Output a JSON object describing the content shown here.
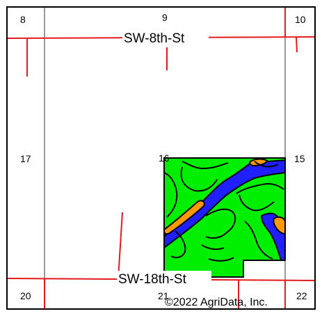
{
  "map": {
    "colors": {
      "frame": "#000000",
      "section_line": "#999999",
      "road": "#e31a1c",
      "soil_green": "#00ee00",
      "soil_blue": "#1f1fff",
      "soil_orange": "#ff9900",
      "soil_outline": "#000000",
      "background": "#ffffff"
    },
    "section_numbers": {
      "s8": "8",
      "s9": "9",
      "s10": "10",
      "s17": "17",
      "s16": "16",
      "s15": "15",
      "s20": "20",
      "s21": "21",
      "s22": "22"
    },
    "roads": {
      "north": "SW-8th-St",
      "south": "SW-18th-St"
    },
    "copyright": "©2022 AgriData, Inc."
  }
}
